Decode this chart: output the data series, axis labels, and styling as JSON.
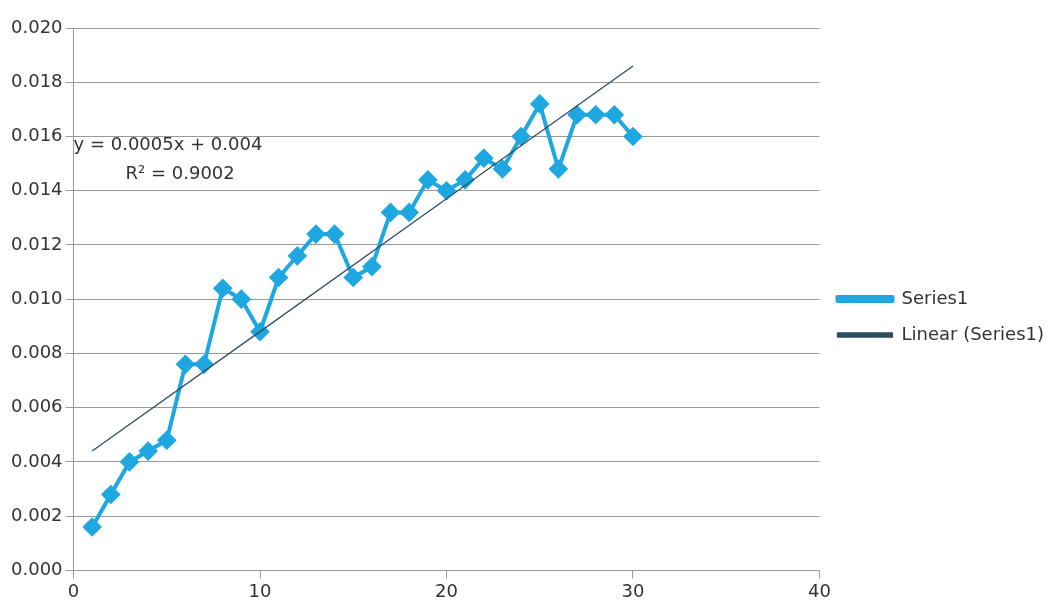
{
  "chart_data": {
    "type": "line",
    "xlim": [
      0,
      40
    ],
    "xticks": [
      0,
      10,
      20,
      30,
      40
    ],
    "ylim": [
      0,
      0.02
    ],
    "yticks": [
      {
        "value": 0,
        "label": "0.000"
      },
      {
        "value": 0.002,
        "label": "0.002"
      },
      {
        "value": 0.004,
        "label": "0.004"
      },
      {
        "value": 0.006,
        "label": "0.006"
      },
      {
        "value": 0.008,
        "label": "0.008"
      },
      {
        "value": 0.01,
        "label": "0.010"
      },
      {
        "value": 0.012,
        "label": "0.012"
      },
      {
        "value": 0.014,
        "label": "0.014"
      },
      {
        "value": 0.016,
        "label": "0.016"
      },
      {
        "value": 0.018,
        "label": "0.018"
      },
      {
        "value": 0.02,
        "label": "0.020"
      }
    ],
    "grid": "y",
    "legend": "right",
    "series": [
      {
        "name": "Series1",
        "color": "#1ea7e0",
        "marker": "diamond",
        "x": [
          1,
          2,
          3,
          4,
          5,
          6,
          7,
          8,
          9,
          10,
          11,
          12,
          13,
          14,
          15,
          16,
          17,
          18,
          19,
          20,
          21,
          22,
          23,
          24,
          25,
          26,
          27,
          28,
          29,
          30
        ],
        "values": [
          0.0016,
          0.0028,
          0.004,
          0.0044,
          0.0048,
          0.0076,
          0.0076,
          0.0104,
          0.01,
          0.0088,
          0.0108,
          0.0116,
          0.0124,
          0.0124,
          0.0108,
          0.0112,
          0.0132,
          0.0132,
          0.0144,
          0.014,
          0.0144,
          0.0152,
          0.0148,
          0.016,
          0.0172,
          0.0148,
          0.0168,
          0.0168,
          0.0168,
          0.016
        ]
      },
      {
        "name": "Linear (Series1)",
        "color": "#2e4e5e",
        "type": "line",
        "marker": "none",
        "x": [
          1,
          30
        ],
        "values": [
          0.0044,
          0.0186
        ]
      }
    ],
    "annotations": [
      "y = 0.0005x + 0.004",
      "R² = 0.9002"
    ]
  }
}
